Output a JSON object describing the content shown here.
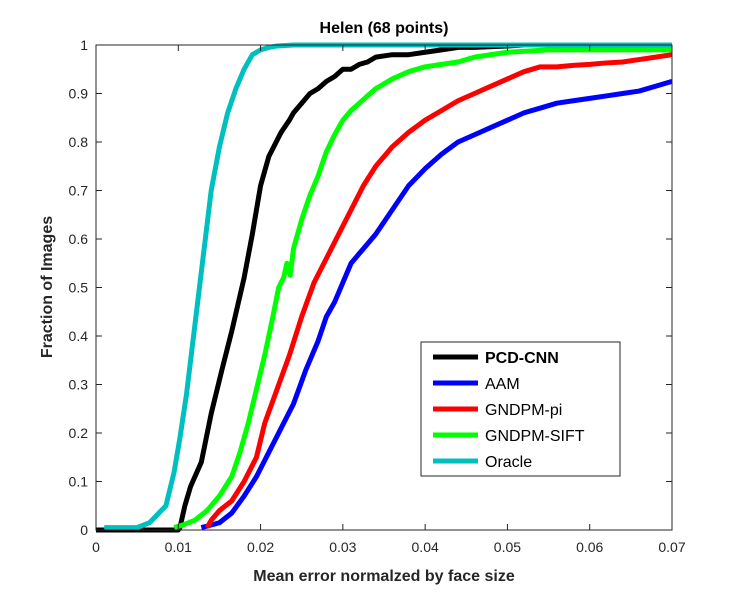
{
  "chart_data": {
    "type": "line",
    "title": "Helen (68 points)",
    "xlabel": "Mean error normalzed by face size",
    "ylabel": "Fraction of Images",
    "xlim": [
      0,
      0.07
    ],
    "ylim": [
      0,
      1
    ],
    "xticks": [
      "0",
      "0.01",
      "0.02",
      "0.03",
      "0.04",
      "0.05",
      "0.06",
      "0.07"
    ],
    "yticks": [
      "0",
      "0.1",
      "0.2",
      "0.3",
      "0.4",
      "0.5",
      "0.6",
      "0.7",
      "0.8",
      "0.9",
      "1"
    ],
    "grid": false,
    "legend_position": "bottom-right",
    "series": [
      {
        "name": "PCD-CNN",
        "color": "#000000",
        "bold_label": true,
        "x": [
          0,
          0.001,
          0.0035,
          0.01,
          0.0102,
          0.0108,
          0.0115,
          0.0128,
          0.014,
          0.0153,
          0.0165,
          0.018,
          0.019,
          0.02,
          0.021,
          0.0225,
          0.0235,
          0.024,
          0.025,
          0.026,
          0.027,
          0.028,
          0.029,
          0.03,
          0.031,
          0.032,
          0.033,
          0.034,
          0.036,
          0.038,
          0.04,
          0.042,
          0.044,
          0.046,
          0.05,
          0.052,
          0.055,
          0.06,
          0.065,
          0.07
        ],
        "y": [
          0,
          0,
          0,
          0,
          0.005,
          0.05,
          0.09,
          0.14,
          0.24,
          0.33,
          0.41,
          0.52,
          0.61,
          0.71,
          0.77,
          0.82,
          0.845,
          0.86,
          0.88,
          0.9,
          0.91,
          0.925,
          0.935,
          0.95,
          0.95,
          0.96,
          0.965,
          0.975,
          0.98,
          0.98,
          0.985,
          0.99,
          0.995,
          0.995,
          0.998,
          1,
          1,
          1,
          1,
          1
        ]
      },
      {
        "name": "AAM",
        "color": "#0000ff",
        "bold_label": false,
        "x": [
          0.0128,
          0.0135,
          0.015,
          0.0165,
          0.018,
          0.0195,
          0.021,
          0.0225,
          0.024,
          0.0255,
          0.027,
          0.028,
          0.029,
          0.03,
          0.031,
          0.032,
          0.033,
          0.034,
          0.036,
          0.038,
          0.04,
          0.042,
          0.044,
          0.046,
          0.048,
          0.05,
          0.052,
          0.054,
          0.056,
          0.058,
          0.06,
          0.062,
          0.064,
          0.066,
          0.068,
          0.07
        ],
        "y": [
          0.005,
          0.008,
          0.015,
          0.035,
          0.07,
          0.11,
          0.16,
          0.21,
          0.26,
          0.33,
          0.39,
          0.44,
          0.47,
          0.51,
          0.55,
          0.57,
          0.59,
          0.61,
          0.66,
          0.71,
          0.745,
          0.775,
          0.8,
          0.815,
          0.83,
          0.845,
          0.86,
          0.87,
          0.88,
          0.885,
          0.89,
          0.895,
          0.9,
          0.905,
          0.915,
          0.925
        ]
      },
      {
        "name": "GNDPM-pi",
        "color": "#ff0000",
        "bold_label": false,
        "x": [
          0.0135,
          0.014,
          0.015,
          0.0165,
          0.018,
          0.0195,
          0.0205,
          0.022,
          0.0235,
          0.025,
          0.0265,
          0.028,
          0.0295,
          0.031,
          0.0325,
          0.034,
          0.036,
          0.038,
          0.04,
          0.042,
          0.044,
          0.046,
          0.048,
          0.05,
          0.052,
          0.054,
          0.056,
          0.058,
          0.06,
          0.062,
          0.064,
          0.066,
          0.068,
          0.07
        ],
        "y": [
          0.005,
          0.02,
          0.04,
          0.06,
          0.1,
          0.15,
          0.22,
          0.29,
          0.36,
          0.44,
          0.51,
          0.56,
          0.61,
          0.66,
          0.71,
          0.75,
          0.79,
          0.82,
          0.845,
          0.865,
          0.885,
          0.9,
          0.915,
          0.93,
          0.945,
          0.955,
          0.955,
          0.958,
          0.96,
          0.963,
          0.965,
          0.97,
          0.975,
          0.98
        ]
      },
      {
        "name": "GNDPM-SIFT",
        "color": "#00ff00",
        "bold_label": false,
        "x": [
          0.0095,
          0.0105,
          0.012,
          0.0135,
          0.015,
          0.0165,
          0.0175,
          0.0185,
          0.0195,
          0.0205,
          0.0215,
          0.0222,
          0.0228,
          0.0232,
          0.0236,
          0.024,
          0.025,
          0.026,
          0.027,
          0.028,
          0.029,
          0.03,
          0.031,
          0.032,
          0.033,
          0.034,
          0.035,
          0.036,
          0.038,
          0.04,
          0.042,
          0.044,
          0.046,
          0.05,
          0.055,
          0.06,
          0.065,
          0.07
        ],
        "y": [
          0.005,
          0.01,
          0.02,
          0.04,
          0.07,
          0.11,
          0.16,
          0.22,
          0.29,
          0.36,
          0.44,
          0.5,
          0.52,
          0.55,
          0.525,
          0.58,
          0.64,
          0.69,
          0.73,
          0.78,
          0.815,
          0.845,
          0.865,
          0.88,
          0.895,
          0.91,
          0.92,
          0.93,
          0.945,
          0.955,
          0.96,
          0.965,
          0.975,
          0.985,
          0.99,
          0.99,
          0.99,
          0.99
        ]
      },
      {
        "name": "Oracle",
        "color": "#00bfbf",
        "bold_label": false,
        "x": [
          0.001,
          0.002,
          0.005,
          0.0065,
          0.0085,
          0.0095,
          0.0102,
          0.011,
          0.012,
          0.013,
          0.014,
          0.015,
          0.016,
          0.017,
          0.018,
          0.019,
          0.02,
          0.021,
          0.022,
          0.024,
          0.026,
          0.03,
          0.035,
          0.04,
          0.05,
          0.06,
          0.07
        ],
        "y": [
          0.005,
          0.005,
          0.005,
          0.015,
          0.05,
          0.12,
          0.19,
          0.28,
          0.42,
          0.56,
          0.7,
          0.79,
          0.86,
          0.91,
          0.95,
          0.98,
          0.99,
          0.995,
          0.998,
          1,
          1,
          1,
          1,
          1,
          1,
          1,
          1
        ]
      }
    ]
  }
}
